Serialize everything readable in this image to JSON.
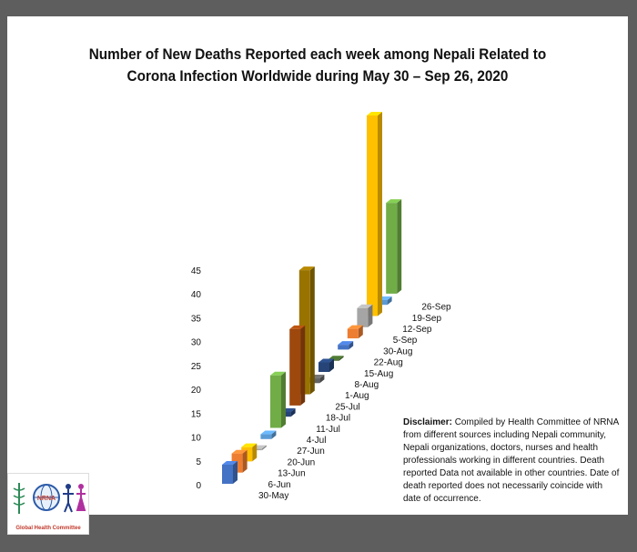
{
  "title_line1": "Number of New Deaths Reported each week among Nepali Related to",
  "title_line2": "Corona Infection Worldwide during May 30 – Sep 26, 2020",
  "disclaimer_label": "Disclaimer:",
  "disclaimer_text": "Compiled by Health Committee of NRNA from different sources including Nepali community, Nepali organizations, doctors, nurses and health professionals working in different countries. Death reported Data not available in other countries. Date of death reported does not necessarily coincide with date of occurrence.",
  "logo": {
    "text": "NRNA",
    "caption": "Global Health Committee"
  },
  "chart_data": {
    "type": "bar",
    "title": "Number of New Deaths Reported each week among Nepali Related to Corona Infection Worldwide during May 30 – Sep 26, 2020",
    "categories": [
      "30-May",
      "6-Jun",
      "13-Jun",
      "20-Jun",
      "27-Jun",
      "4-Jul",
      "11-Jul",
      "18-Jul",
      "25-Jul",
      "1-Aug",
      "8-Aug",
      "15-Aug",
      "22-Aug",
      "30-Aug",
      "5-Sep",
      "12-Sep",
      "19-Sep",
      "26-Sep"
    ],
    "values": [
      4,
      4,
      3,
      0,
      1,
      11,
      1,
      16,
      26,
      1,
      2,
      0,
      1,
      2,
      4,
      42,
      1,
      19
    ],
    "colors": [
      "#4472c4",
      "#ed7d31",
      "#ffc000",
      "#a5a5a5",
      "#5b9bd5",
      "#70ad47",
      "#264478",
      "#9e480e",
      "#997300",
      "#636363",
      "#264478",
      "#43682b",
      "#4472c4",
      "#ed7d31",
      "#a5a5a5",
      "#ffc000",
      "#5b9bd5",
      "#70ad47"
    ],
    "yticks": [
      "0",
      "5",
      "10",
      "15",
      "20",
      "25",
      "30",
      "35",
      "40",
      "45"
    ],
    "ylim": [
      0,
      45
    ],
    "grid": false,
    "legend": "none"
  }
}
